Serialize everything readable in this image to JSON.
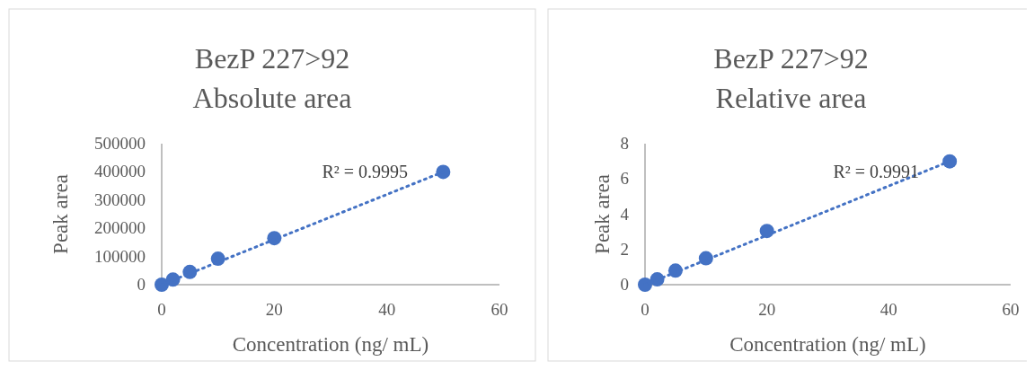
{
  "chart_data": [
    {
      "type": "scatter",
      "title": "BezP 227>92",
      "subtitle": "Absolute  area",
      "xlabel": "Concentration (ng/ mL)",
      "ylabel": "Peak area",
      "xlim": [
        0,
        60
      ],
      "xticks": [
        0,
        20,
        40,
        60
      ],
      "ylim": [
        0,
        500000
      ],
      "yticks": [
        0,
        100000,
        200000,
        300000,
        400000,
        500000
      ],
      "marker": "circle",
      "annotations": [
        "R² = 0.9995"
      ],
      "series": [
        {
          "color": "#4472c4",
          "x": [
            0,
            2,
            5,
            10,
            20,
            50
          ],
          "values": [
            0,
            18000,
            45000,
            92000,
            165000,
            400000
          ]
        },
        {
          "type": "line",
          "line_style": "dotted",
          "marker": "none",
          "color": "#4472c4",
          "x": [
            0,
            50
          ],
          "values": [
            0,
            400000
          ]
        }
      ]
    },
    {
      "type": "scatter",
      "title": "BezP 227>92",
      "subtitle": "Relative  area",
      "xlabel": "Concentration (ng/ mL)",
      "ylabel": "Peak area",
      "xlim": [
        0,
        60
      ],
      "xticks": [
        0,
        20,
        40,
        60
      ],
      "ylim": [
        0,
        8
      ],
      "yticks": [
        0,
        2,
        4,
        6,
        8
      ],
      "marker": "circle",
      "annotations": [
        "R² = 0.9991"
      ],
      "series": [
        {
          "color": "#4472c4",
          "x": [
            0,
            2,
            5,
            10,
            20,
            50
          ],
          "values": [
            0,
            0.3,
            0.8,
            1.5,
            3.05,
            7
          ]
        },
        {
          "type": "line",
          "line_style": "dotted",
          "marker": "none",
          "color": "#4472c4",
          "x": [
            0,
            50
          ],
          "values": [
            0,
            7
          ]
        }
      ]
    }
  ]
}
